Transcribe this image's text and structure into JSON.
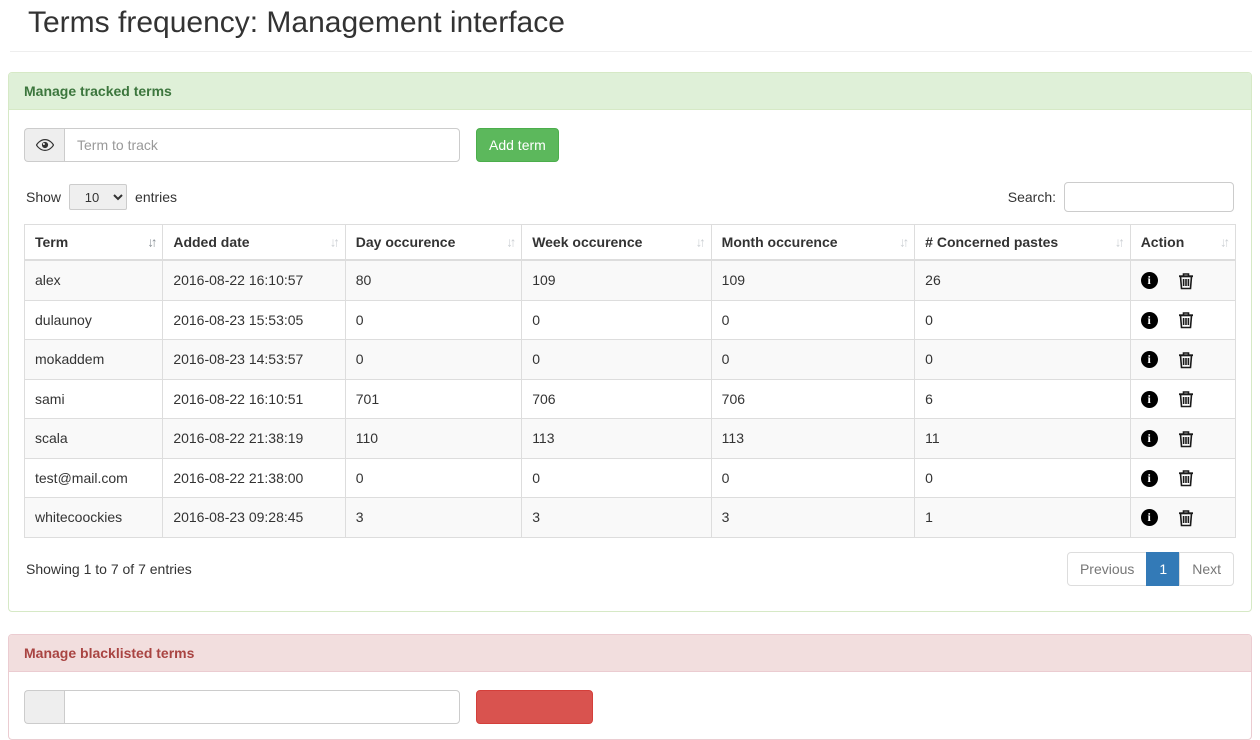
{
  "page": {
    "title": "Terms frequency: Management interface"
  },
  "tracked_panel": {
    "title": "Manage tracked terms",
    "term_input_placeholder": "Term to track",
    "term_input_value": "",
    "add_button_label": "Add term",
    "accent_color": "#5cb85c",
    "header_bg": "#dff0d8",
    "header_text_color": "#3c763d"
  },
  "datatable": {
    "show_label": "Show",
    "entries_label": "entries",
    "page_length_selected": "10",
    "search_label": "Search:",
    "search_value": "",
    "columns": [
      {
        "label": "Term",
        "sorted": "asc"
      },
      {
        "label": "Added date",
        "sorted": "none"
      },
      {
        "label": "Day occurence",
        "sorted": "none"
      },
      {
        "label": "Week occurence",
        "sorted": "none"
      },
      {
        "label": "Month occurence",
        "sorted": "none"
      },
      {
        "label": "# Concerned pastes",
        "sorted": "none"
      },
      {
        "label": "Action",
        "sorted": "none"
      }
    ],
    "rows": [
      {
        "term": "alex",
        "added_date": "2016-08-22 16:10:57",
        "day": "80",
        "week": "109",
        "month": "109",
        "pastes": "26"
      },
      {
        "term": "dulaunoy",
        "added_date": "2016-08-23 15:53:05",
        "day": "0",
        "week": "0",
        "month": "0",
        "pastes": "0"
      },
      {
        "term": "mokaddem",
        "added_date": "2016-08-23 14:53:57",
        "day": "0",
        "week": "0",
        "month": "0",
        "pastes": "0"
      },
      {
        "term": "sami",
        "added_date": "2016-08-22 16:10:51",
        "day": "701",
        "week": "706",
        "month": "706",
        "pastes": "6"
      },
      {
        "term": "scala",
        "added_date": "2016-08-22 21:38:19",
        "day": "110",
        "week": "113",
        "month": "113",
        "pastes": "11"
      },
      {
        "term": "test@mail.com",
        "added_date": "2016-08-22 21:38:00",
        "day": "0",
        "week": "0",
        "month": "0",
        "pastes": "0"
      },
      {
        "term": "whitecoockies",
        "added_date": "2016-08-23 09:28:45",
        "day": "3",
        "week": "3",
        "month": "3",
        "pastes": "1"
      }
    ],
    "info_text": "Showing 1 to 7 of 7 entries",
    "pagination": {
      "previous_label": "Previous",
      "current_page": "1",
      "next_label": "Next",
      "active_color": "#337ab7"
    },
    "icons": {
      "info": "info-circle-icon",
      "delete": "trash-icon"
    }
  },
  "blacklist_panel": {
    "title": "Manage blacklisted terms",
    "term_input_value": "",
    "accent_color": "#d9534f",
    "header_bg": "#f2dede",
    "header_text_color": "#a94442"
  }
}
